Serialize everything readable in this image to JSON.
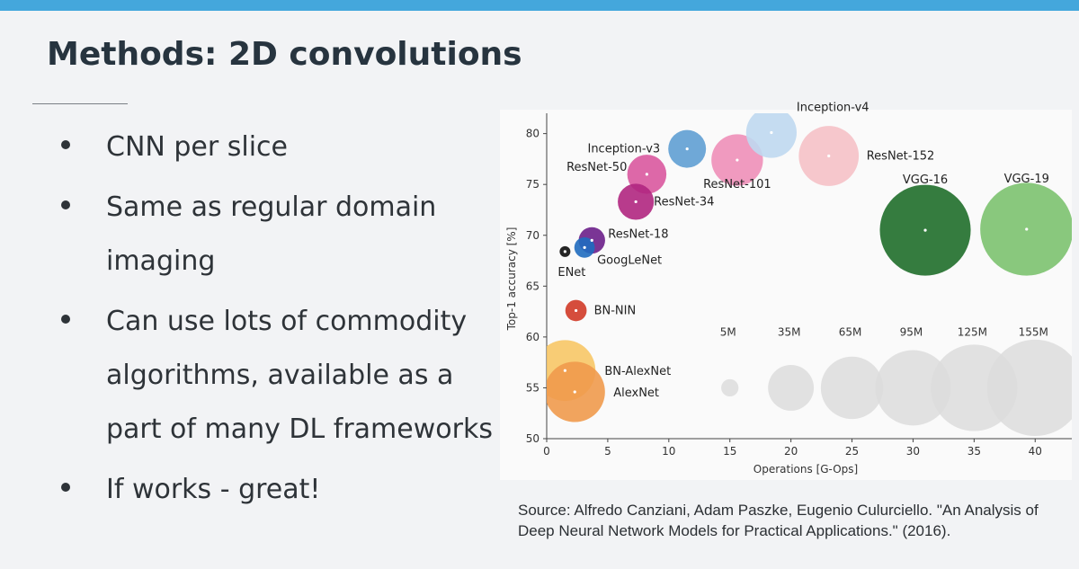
{
  "slide": {
    "title": "Methods: 2D convolutions",
    "bullets": [
      "CNN per slice",
      "Same as regular domain imaging",
      "Can use lots of commodity algorithms, available as a part of many DL frameworks",
      "If works - great!"
    ],
    "source": "Source: Alfredo Canziani, Adam Paszke, Eugenio Culurciello. \"An Analysis of Deep Neural Network Models for Practical Applications.\" (2016)."
  },
  "colors": {
    "accent_bar": "#44a7dc",
    "text": "#2e3338"
  },
  "chart_data": {
    "type": "scatter",
    "title": "",
    "xlabel": "Operations [G-Ops]",
    "ylabel": "Top-1 accuracy [%]",
    "xlim": [
      0,
      43
    ],
    "ylim": [
      50,
      82
    ],
    "xticks": [
      0,
      5,
      10,
      15,
      20,
      25,
      30,
      35,
      40
    ],
    "yticks": [
      50,
      55,
      60,
      65,
      70,
      75,
      80
    ],
    "size_unit": "parameters (millions)",
    "points": [
      {
        "name": "ENet",
        "x": 1.5,
        "y": 68.4,
        "params_m": 0.4,
        "color": "#0d0d0d"
      },
      {
        "name": "GoogLeNet",
        "x": 3.1,
        "y": 68.8,
        "params_m": 7,
        "color": "#1f6bbf"
      },
      {
        "name": "ResNet-18",
        "x": 3.7,
        "y": 69.5,
        "params_m": 11.7,
        "color": "#6b1f8a"
      },
      {
        "name": "ResNet-34",
        "x": 7.3,
        "y": 73.3,
        "params_m": 21.8,
        "color": "#b0267f"
      },
      {
        "name": "ResNet-50",
        "x": 8.2,
        "y": 76,
        "params_m": 25.6,
        "color": "#d9589f"
      },
      {
        "name": "Inception-v3",
        "x": 11.5,
        "y": 78.5,
        "params_m": 23.8,
        "color": "#5f9fd3"
      },
      {
        "name": "ResNet-101",
        "x": 15.6,
        "y": 77.4,
        "params_m": 44.5,
        "color": "#ee8fb8"
      },
      {
        "name": "Inception-v4",
        "x": 18.4,
        "y": 80.1,
        "params_m": 42.7,
        "color": "#bfd8ef"
      },
      {
        "name": "ResNet-152",
        "x": 23.1,
        "y": 77.8,
        "params_m": 60.2,
        "color": "#f5c1c7"
      },
      {
        "name": "VGG-16",
        "x": 31,
        "y": 70.5,
        "params_m": 138,
        "color": "#1f6e2a"
      },
      {
        "name": "VGG-19",
        "x": 39.3,
        "y": 70.6,
        "params_m": 144,
        "color": "#7cc26f"
      },
      {
        "name": "BN-NIN",
        "x": 2.4,
        "y": 62.6,
        "params_m": 7.6,
        "color": "#d03a27"
      },
      {
        "name": "BN-AlexNet",
        "x": 1.5,
        "y": 56.7,
        "params_m": 62,
        "color": "#f7c766"
      },
      {
        "name": "AlexNet",
        "x": 2.3,
        "y": 54.6,
        "params_m": 61,
        "color": "#ef9a4c"
      }
    ],
    "size_legend": [
      {
        "label": "5M",
        "x": 15,
        "y": 55,
        "params_m": 5
      },
      {
        "label": "35M",
        "x": 20,
        "y": 55,
        "params_m": 35
      },
      {
        "label": "65M",
        "x": 25,
        "y": 55,
        "params_m": 65
      },
      {
        "label": "95M",
        "x": 30,
        "y": 55,
        "params_m": 95
      },
      {
        "label": "125M",
        "x": 35,
        "y": 55,
        "params_m": 125
      },
      {
        "label": "155M",
        "x": 40,
        "y": 55,
        "params_m": 155
      }
    ]
  }
}
